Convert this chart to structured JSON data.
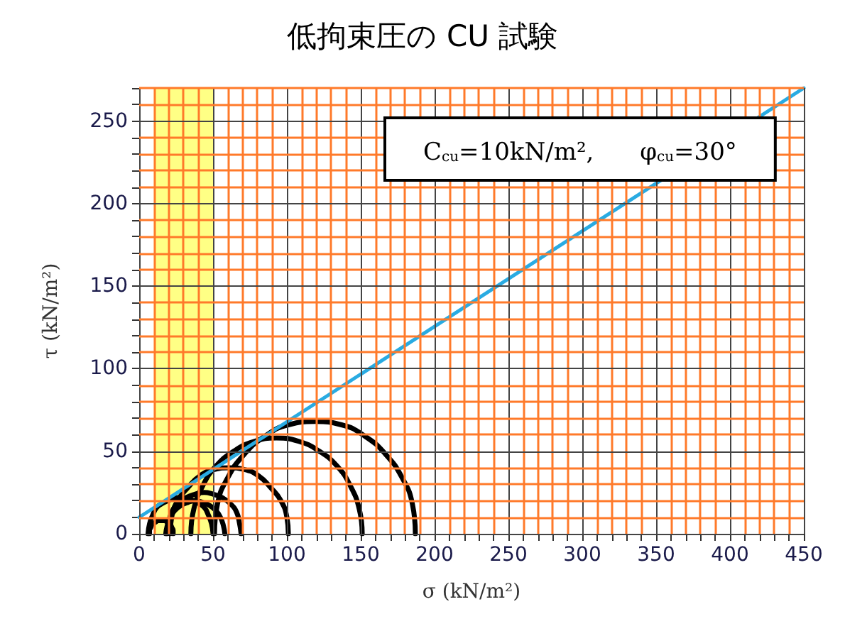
{
  "chart_data": {
    "type": "line",
    "title": "低拘束圧の CU 試験",
    "xlabel": "σ (kN/m²)",
    "ylabel": "τ (kN/m²)",
    "xlim": [
      0,
      450
    ],
    "xticks": [
      0,
      {
        "value": 10,
        "label": null
      },
      {
        "value": 20,
        "label": null
      },
      {
        "value": 30,
        "label": null
      },
      {
        "value": 40,
        "label": null
      },
      50,
      {
        "value": 60,
        "label": null
      },
      {
        "value": 70,
        "label": null
      },
      {
        "value": 80,
        "label": null
      },
      {
        "value": 90,
        "label": null
      },
      100,
      {
        "value": 110,
        "label": null
      },
      {
        "value": 120,
        "label": null
      },
      {
        "value": 130,
        "label": null
      },
      {
        "value": 140,
        "label": null
      },
      150,
      {
        "value": 160,
        "label": null
      },
      {
        "value": 170,
        "label": null
      },
      {
        "value": 180,
        "label": null
      },
      {
        "value": 190,
        "label": null
      },
      200,
      {
        "value": 210,
        "label": null
      },
      {
        "value": 220,
        "label": null
      },
      {
        "value": 230,
        "label": null
      },
      {
        "value": 240,
        "label": null
      },
      250,
      {
        "value": 260,
        "label": null
      },
      {
        "value": 270,
        "label": null
      },
      {
        "value": 280,
        "label": null
      },
      {
        "value": 290,
        "label": null
      },
      300,
      {
        "value": 310,
        "label": null
      },
      {
        "value": 320,
        "label": null
      },
      {
        "value": 330,
        "label": null
      },
      {
        "value": 340,
        "label": null
      },
      350,
      {
        "value": 360,
        "label": null
      },
      {
        "value": 370,
        "label": null
      },
      {
        "value": 380,
        "label": null
      },
      {
        "value": 390,
        "label": null
      },
      400,
      {
        "value": 410,
        "label": null
      },
      {
        "value": 420,
        "label": null
      },
      {
        "value": 430,
        "label": null
      },
      {
        "value": 440,
        "label": null
      },
      450
    ],
    "ylim": [
      0,
      270
    ],
    "yticks": [
      0,
      {
        "value": 10,
        "label": null
      },
      {
        "value": 20,
        "label": null
      },
      {
        "value": 30,
        "label": null
      },
      {
        "value": 40,
        "label": null
      },
      50,
      {
        "value": 60,
        "label": null
      },
      {
        "value": 70,
        "label": null
      },
      {
        "value": 80,
        "label": null
      },
      {
        "value": 90,
        "label": null
      },
      100,
      {
        "value": 110,
        "label": null
      },
      {
        "value": 120,
        "label": null
      },
      {
        "value": 130,
        "label": null
      },
      {
        "value": 140,
        "label": null
      },
      150,
      {
        "value": 160,
        "label": null
      },
      {
        "value": 170,
        "label": null
      },
      {
        "value": 180,
        "label": null
      },
      {
        "value": 190,
        "label": null
      },
      200,
      {
        "value": 210,
        "label": null
      },
      {
        "value": 220,
        "label": null
      },
      {
        "value": 230,
        "label": null
      },
      {
        "value": 240,
        "label": null
      },
      250,
      {
        "value": 260,
        "label": null
      },
      {
        "value": 270,
        "label": null
      }
    ],
    "grid": true,
    "marker": "none",
    "line_style": "solid",
    "annotations": [
      "C$_{cu}$=10kN/m², φ$_{cu}$=30°"
    ],
    "bands": [
      {
        "axis": "x",
        "from": 10,
        "to": 50,
        "color": "#ffff33"
      }
    ],
    "series": [
      {
        "color": "#29abe2",
        "x": [
          0,
          450
        ],
        "values": [
          10,
          270
        ]
      },
      {
        "color": "#000000",
        "x": [
          51,
          53,
          60,
          71,
          85,
          101,
          119,
          137,
          153,
          167,
          178,
          185,
          187
        ],
        "values": [
          0,
          18,
          34,
          48,
          59,
          66,
          68,
          66,
          59,
          48,
          34,
          18,
          0
        ]
      },
      {
        "color": "#000000",
        "x": [
          35,
          37,
          43,
          52,
          64,
          78,
          93,
          108,
          122,
          134,
          143,
          149,
          151
        ],
        "values": [
          0,
          15,
          29,
          41,
          50,
          56,
          58,
          56,
          50,
          41,
          29,
          15,
          0
        ]
      },
      {
        "color": "#000000",
        "x": [
          21,
          22,
          26,
          33,
          41,
          51,
          61,
          71,
          81,
          89,
          96,
          100,
          101
        ],
        "values": [
          0,
          10,
          20,
          28,
          35,
          39,
          40,
          39,
          35,
          28,
          20,
          10,
          0
        ]
      },
      {
        "color": "#000000",
        "x": [
          19,
          20,
          22,
          26,
          32,
          38,
          44,
          50,
          56,
          62,
          66,
          68,
          69
        ],
        "values": [
          0,
          6,
          13,
          18,
          22,
          24,
          25,
          24,
          22,
          18,
          13,
          6,
          0
        ]
      },
      {
        "color": "#000000",
        "x": [
          18,
          19,
          21,
          24,
          28,
          33,
          38,
          43,
          48,
          52,
          55,
          57,
          58
        ],
        "values": [
          0,
          5,
          10,
          14,
          17,
          19,
          20,
          19,
          17,
          14,
          10,
          5,
          0
        ]
      },
      {
        "color": "#000000",
        "x": [
          6,
          7,
          9,
          12,
          17,
          22,
          28,
          34,
          39,
          44,
          47,
          49,
          50
        ],
        "values": [
          0,
          6,
          11,
          16,
          19,
          21,
          22,
          21,
          19,
          16,
          11,
          6,
          0
        ]
      },
      {
        "color": "#000000",
        "x": [
          7,
          7,
          8,
          9,
          11,
          13,
          15,
          17,
          19,
          21,
          22,
          23,
          23
        ],
        "values": [
          0,
          2,
          4,
          6,
          7,
          8,
          8,
          8,
          7,
          6,
          4,
          2,
          0
        ]
      }
    ]
  }
}
